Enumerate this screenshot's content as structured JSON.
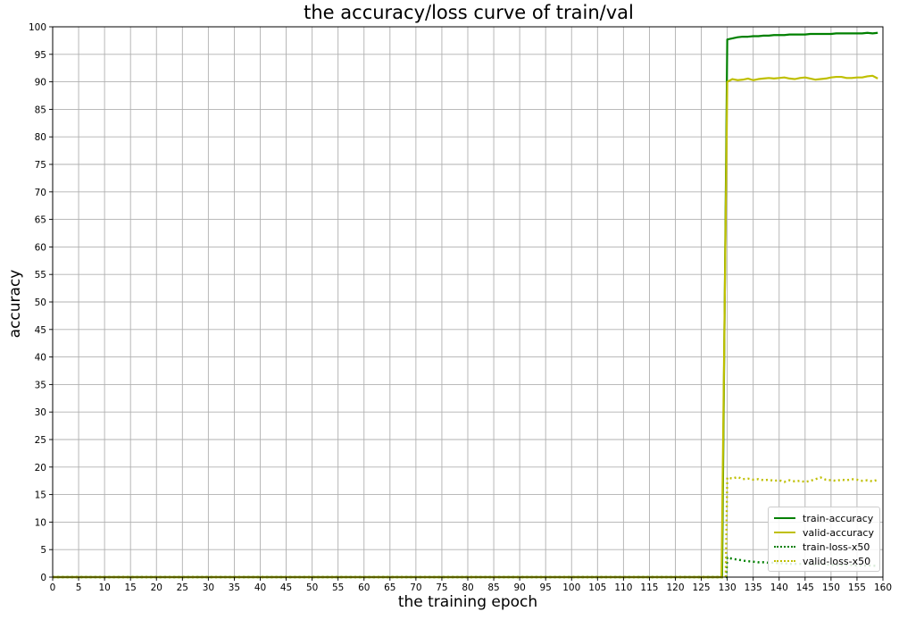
{
  "chart_data": {
    "type": "line",
    "title": "the accuracy/loss curve of train/val",
    "xlabel": "the training epoch",
    "ylabel": "accuracy",
    "xlim": [
      0,
      160
    ],
    "ylim": [
      0,
      100
    ],
    "xticks": [
      0,
      5,
      10,
      15,
      20,
      25,
      30,
      35,
      40,
      45,
      50,
      55,
      60,
      65,
      70,
      75,
      80,
      85,
      90,
      95,
      100,
      105,
      110,
      115,
      120,
      125,
      130,
      135,
      140,
      145,
      150,
      155,
      160
    ],
    "yticks": [
      0,
      5,
      10,
      15,
      20,
      25,
      30,
      35,
      40,
      45,
      50,
      55,
      60,
      65,
      70,
      75,
      80,
      85,
      90,
      95,
      100
    ],
    "grid": true,
    "legend_position": "lower right",
    "series": [
      {
        "name": "train-accuracy",
        "color": "#008000",
        "style": "solid",
        "x": [
          0,
          129,
          130,
          131,
          132,
          133,
          134,
          135,
          136,
          137,
          138,
          139,
          140,
          141,
          142,
          143,
          144,
          145,
          146,
          147,
          148,
          149,
          150,
          151,
          152,
          153,
          154,
          155,
          156,
          157,
          158,
          159
        ],
        "y": [
          0,
          0,
          97.7,
          97.9,
          98.1,
          98.2,
          98.2,
          98.3,
          98.3,
          98.4,
          98.4,
          98.5,
          98.5,
          98.5,
          98.6,
          98.6,
          98.6,
          98.6,
          98.7,
          98.7,
          98.7,
          98.7,
          98.7,
          98.8,
          98.8,
          98.8,
          98.8,
          98.8,
          98.8,
          98.9,
          98.8,
          98.9
        ]
      },
      {
        "name": "valid-accuracy",
        "color": "#bfbf00",
        "style": "solid",
        "x": [
          0,
          128.9,
          130,
          131,
          132,
          133,
          134,
          135,
          136,
          137,
          138,
          139,
          140,
          141,
          142,
          143,
          144,
          145,
          146,
          147,
          148,
          149,
          150,
          151,
          152,
          153,
          154,
          155,
          156,
          157,
          158,
          159
        ],
        "y": [
          0,
          0,
          90.0,
          90.5,
          90.3,
          90.4,
          90.6,
          90.3,
          90.5,
          90.6,
          90.7,
          90.6,
          90.7,
          90.8,
          90.6,
          90.5,
          90.7,
          90.8,
          90.6,
          90.4,
          90.5,
          90.6,
          90.8,
          90.9,
          90.9,
          90.7,
          90.7,
          90.8,
          90.8,
          91.0,
          91.1,
          90.6
        ]
      },
      {
        "name": "train-loss-x50",
        "color": "#008000",
        "style": "dotted",
        "x": [
          0,
          129.8,
          130,
          131,
          132,
          133,
          134,
          135,
          136,
          137,
          138,
          139,
          140,
          141,
          142,
          143,
          144,
          145,
          146,
          147,
          148,
          149,
          150,
          151,
          152,
          153,
          154,
          155,
          156,
          157,
          158,
          159
        ],
        "y": [
          0,
          0,
          3.6,
          3.3,
          3.2,
          3.0,
          2.9,
          2.8,
          2.7,
          2.7,
          2.6,
          2.6,
          2.5,
          2.5,
          2.4,
          2.4,
          2.4,
          2.4,
          2.3,
          2.3,
          2.3,
          2.3,
          2.2,
          2.2,
          2.2,
          2.2,
          2.2,
          2.1,
          2.1,
          2.1,
          2.1,
          2.0
        ]
      },
      {
        "name": "valid-loss-x50",
        "color": "#bfbf00",
        "style": "dotted",
        "x": [
          0,
          129.7,
          130,
          131,
          132,
          133,
          134,
          135,
          136,
          137,
          138,
          139,
          140,
          141,
          142,
          143,
          144,
          145,
          146,
          147,
          148,
          149,
          150,
          151,
          152,
          153,
          154,
          155,
          156,
          157,
          158,
          159
        ],
        "y": [
          0,
          0,
          18.1,
          17.9,
          18.2,
          17.8,
          17.9,
          17.7,
          17.8,
          17.6,
          17.7,
          17.5,
          17.6,
          17.3,
          17.6,
          17.4,
          17.5,
          17.3,
          17.5,
          17.8,
          18.1,
          17.7,
          17.6,
          17.5,
          17.7,
          17.6,
          17.8,
          17.7,
          17.5,
          17.6,
          17.4,
          17.7
        ]
      }
    ]
  }
}
